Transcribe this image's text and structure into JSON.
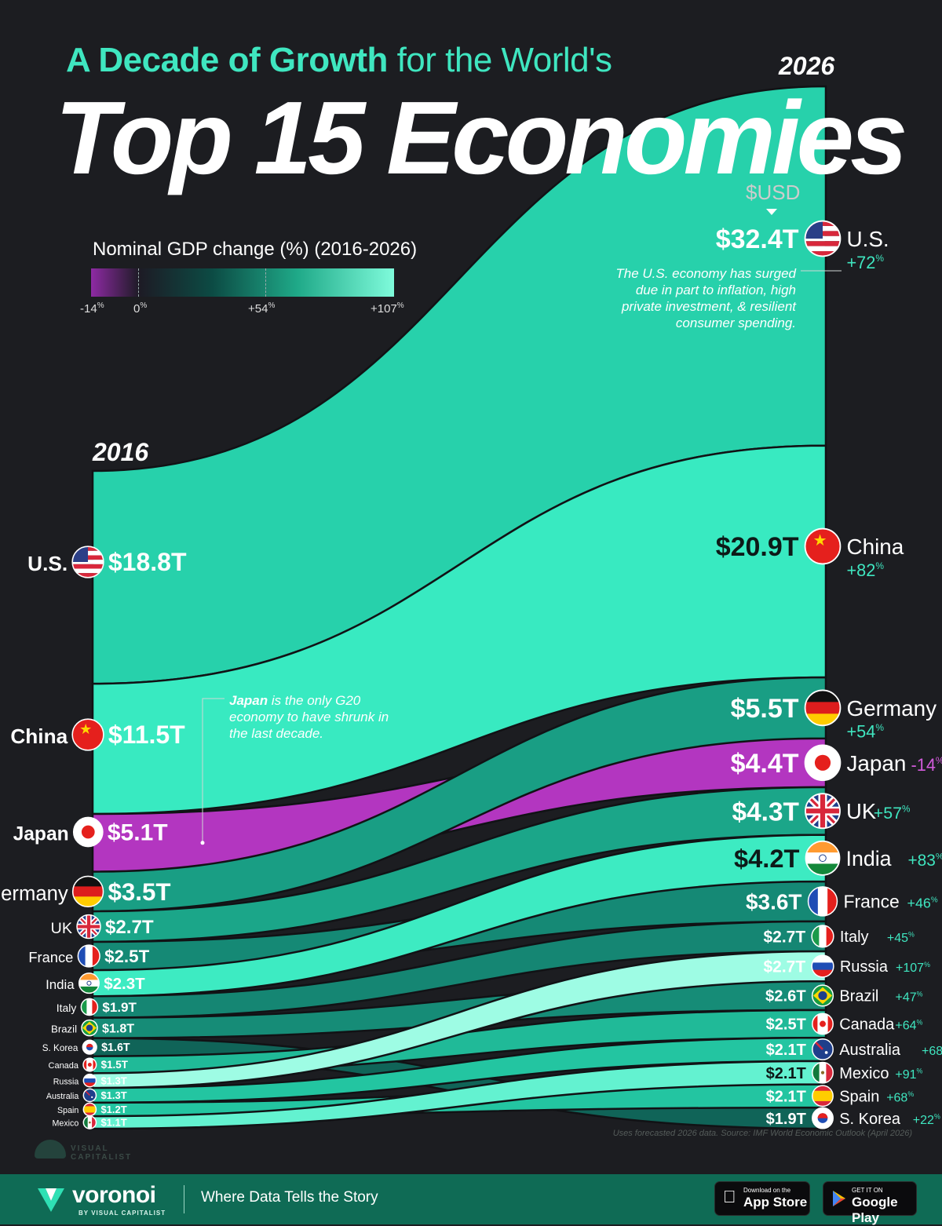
{
  "header": {
    "title_part1": "A Decade of Growth",
    "title_part2": " for the World's",
    "title_main": "Top 15 Economies"
  },
  "legend": {
    "title": "Nominal GDP change (%) (2016-2026)",
    "ticks": [
      {
        "label": "-14",
        "unit": "%"
      },
      {
        "label": "0",
        "unit": "%"
      },
      {
        "label": "+54",
        "unit": "%"
      },
      {
        "label": "+107",
        "unit": "%"
      }
    ]
  },
  "currency_label": "$USD",
  "notes": {
    "us_note": "The U.S. economy has surged due in part to inflation, high private investment, & resilient consumer spending.",
    "japan_note_bold": "Japan",
    "japan_note_rest": " is the only G20 economy to have shrunk in the last decade."
  },
  "source": "Uses forecasted 2026 data. Source: IMF World Economic Outlook (April 2026)",
  "branding": {
    "watermark": "VISUAL CAPITALIST",
    "brand": "voronoi",
    "brand_sub": "BY VISUAL CAPITALIST",
    "tagline": "Where Data Tells the Story",
    "app_store_small": "Download on the",
    "app_store_big": "App Store",
    "google_play_small": "GET IT ON",
    "google_play_big": "Google Play"
  },
  "colors": {
    "background": "#1c1d21",
    "accent": "#3fe6c0",
    "negative": "#b336c0",
    "footer": "#0f6b55"
  },
  "chart_data": {
    "type": "sankey-bump",
    "x": [
      "2016",
      "2026"
    ],
    "value_unit": "T (trillions, $USD)",
    "countries": [
      {
        "name": "U.S.",
        "flag": "us-flag-icon",
        "gdp_2016": 18.8,
        "label_2016": "$18.8T",
        "gdp_2026": 32.4,
        "label_2026": "$32.4T",
        "change": "+72",
        "change_pct": 72
      },
      {
        "name": "China",
        "flag": "china-flag-icon",
        "gdp_2016": 11.5,
        "label_2016": "$11.5T",
        "gdp_2026": 20.9,
        "label_2026": "$20.9T",
        "change": "+82",
        "change_pct": 82
      },
      {
        "name": "Japan",
        "flag": "japan-flag-icon",
        "gdp_2016": 5.1,
        "label_2016": "$5.1T",
        "gdp_2026": 4.4,
        "label_2026": "$4.4T",
        "change": "-14",
        "change_pct": -14
      },
      {
        "name": "Germany",
        "flag": "germany-flag-icon",
        "gdp_2016": 3.5,
        "label_2016": "$3.5T",
        "gdp_2026": 5.5,
        "label_2026": "$5.5T",
        "change": "+54",
        "change_pct": 54
      },
      {
        "name": "UK",
        "flag": "uk-flag-icon",
        "gdp_2016": 2.7,
        "label_2016": "$2.7T",
        "gdp_2026": 4.3,
        "label_2026": "$4.3T",
        "change": "+57",
        "change_pct": 57
      },
      {
        "name": "France",
        "flag": "france-flag-icon",
        "gdp_2016": 2.5,
        "label_2016": "$2.5T",
        "gdp_2026": 3.6,
        "label_2026": "$3.6T",
        "change": "+46",
        "change_pct": 46
      },
      {
        "name": "India",
        "flag": "india-flag-icon",
        "gdp_2016": 2.3,
        "label_2016": "$2.3T",
        "gdp_2026": 4.2,
        "label_2026": "$4.2T",
        "change": "+83",
        "change_pct": 83
      },
      {
        "name": "Italy",
        "flag": "italy-flag-icon",
        "gdp_2016": 1.9,
        "label_2016": "$1.9T",
        "gdp_2026": 2.7,
        "label_2026": "$2.7T",
        "change": "+45",
        "change_pct": 45
      },
      {
        "name": "Brazil",
        "flag": "brazil-flag-icon",
        "gdp_2016": 1.8,
        "label_2016": "$1.8T",
        "gdp_2026": 2.6,
        "label_2026": "$2.6T",
        "change": "+47",
        "change_pct": 47
      },
      {
        "name": "S. Korea",
        "flag": "south-korea-flag-icon",
        "gdp_2016": 1.6,
        "label_2016": "$1.6T",
        "gdp_2026": 1.9,
        "label_2026": "$1.9T",
        "change": "+22",
        "change_pct": 22
      },
      {
        "name": "Canada",
        "flag": "canada-flag-icon",
        "gdp_2016": 1.5,
        "label_2016": "$1.5T",
        "gdp_2026": 2.5,
        "label_2026": "$2.5T",
        "change": "+64",
        "change_pct": 64
      },
      {
        "name": "Russia",
        "flag": "russia-flag-icon",
        "gdp_2016": 1.3,
        "label_2016": "$1.3T",
        "gdp_2026": 2.7,
        "label_2026": "$2.7T",
        "change": "+107",
        "change_pct": 107
      },
      {
        "name": "Australia",
        "flag": "australia-flag-icon",
        "gdp_2016": 1.3,
        "label_2016": "$1.3T",
        "gdp_2026": 2.1,
        "label_2026": "$2.1T",
        "change": "+68",
        "change_pct": 68
      },
      {
        "name": "Spain",
        "flag": "spain-flag-icon",
        "gdp_2016": 1.2,
        "label_2016": "$1.2T",
        "gdp_2026": 2.1,
        "label_2026": "$2.1T",
        "change": "+68",
        "change_pct": 68
      },
      {
        "name": "Mexico",
        "flag": "mexico-flag-icon",
        "gdp_2016": 1.1,
        "label_2016": "$1.1T",
        "gdp_2026": 2.1,
        "label_2026": "$2.1T",
        "change": "+91",
        "change_pct": 91
      }
    ],
    "rank_2026": [
      "U.S.",
      "China",
      "Germany",
      "Japan",
      "UK",
      "India",
      "France",
      "Italy",
      "Russia",
      "Brazil",
      "Canada",
      "Australia",
      "Mexico",
      "Spain",
      "S. Korea"
    ],
    "legend_range": [
      -14,
      107
    ]
  }
}
